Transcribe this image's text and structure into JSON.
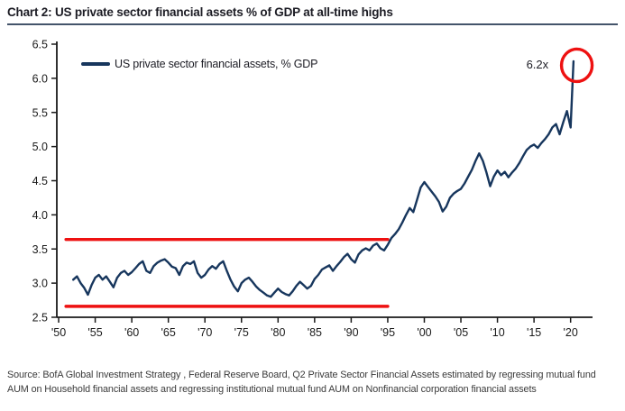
{
  "title": "Chart 2: US private sector financial assets % of GDP at all-time highs",
  "colors": {
    "series": "#17365d",
    "highlight_red": "#ee1111",
    "title_rule": "#44546a",
    "axis": "#1a1a1a",
    "source_text": "#3a3a3a"
  },
  "legend": {
    "label": "US private sector financial assets, % GDP"
  },
  "annotation": {
    "label": "6.2x"
  },
  "source": {
    "line1": "Source:  BofA Global Investment Strategy , Federal Reserve Board, Q2 Private Sector Financial Assets estimated by regressing mutual fund",
    "line2": "AUM on Household financial assets and regressing institutional mutual fund AUM on Nonfinancial corporation financial assets"
  },
  "chart_data": {
    "type": "line",
    "title": "Chart 2: US private sector financial assets % of GDP at all-time highs",
    "xlabel": "",
    "ylabel": "",
    "grid": false,
    "legend_position": "top-left",
    "ylim": [
      2.5,
      6.5
    ],
    "xlim": [
      1949.75,
      2023
    ],
    "yticks": {
      "values": [
        2.5,
        3.0,
        3.5,
        4.0,
        4.5,
        5.0,
        5.5,
        6.0,
        6.5
      ],
      "labels": [
        "2.5",
        "3.0",
        "3.5",
        "4.0",
        "4.5",
        "5.0",
        "5.5",
        "6.0",
        "6.5"
      ]
    },
    "xticks": {
      "values": [
        1950,
        1955,
        1960,
        1965,
        1970,
        1975,
        1980,
        1985,
        1990,
        1995,
        2000,
        2005,
        2010,
        2015,
        2020
      ],
      "labels": [
        "'50",
        "'55",
        "'60",
        "'65",
        "'70",
        "'75",
        "'80",
        "'85",
        "'90",
        "'95",
        "'00",
        "'05",
        "'10",
        "'15",
        "'20"
      ]
    },
    "series": [
      {
        "name": "US private sector financial assets, % GDP",
        "color": "#17365d",
        "x": [
          1952.0,
          1952.5,
          1953.0,
          1953.5,
          1954.0,
          1954.5,
          1955.0,
          1955.5,
          1956.0,
          1956.5,
          1957.0,
          1957.5,
          1958.0,
          1958.5,
          1959.0,
          1959.5,
          1960.0,
          1960.5,
          1961.0,
          1961.5,
          1962.0,
          1962.5,
          1963.0,
          1963.5,
          1964.0,
          1964.5,
          1965.0,
          1965.5,
          1966.0,
          1966.5,
          1967.0,
          1967.5,
          1968.0,
          1968.5,
          1969.0,
          1969.5,
          1970.0,
          1970.5,
          1971.0,
          1971.5,
          1972.0,
          1972.5,
          1973.0,
          1973.5,
          1974.0,
          1974.5,
          1975.0,
          1975.5,
          1976.0,
          1976.5,
          1977.0,
          1977.5,
          1978.0,
          1978.5,
          1979.0,
          1979.5,
          1980.0,
          1980.5,
          1981.0,
          1981.5,
          1982.0,
          1982.5,
          1983.0,
          1983.5,
          1984.0,
          1984.5,
          1985.0,
          1985.5,
          1986.0,
          1986.5,
          1987.0,
          1987.5,
          1988.0,
          1988.5,
          1989.0,
          1989.5,
          1990.0,
          1990.5,
          1991.0,
          1991.5,
          1992.0,
          1992.5,
          1993.0,
          1993.5,
          1994.0,
          1994.5,
          1995.0,
          1995.5,
          1996.0,
          1996.5,
          1997.0,
          1997.5,
          1998.0,
          1998.5,
          1999.0,
          1999.5,
          2000.0,
          2000.5,
          2001.0,
          2001.5,
          2002.0,
          2002.5,
          2003.0,
          2003.5,
          2004.0,
          2004.5,
          2005.0,
          2005.5,
          2006.0,
          2006.5,
          2007.0,
          2007.5,
          2008.0,
          2008.5,
          2009.0,
          2009.5,
          2010.0,
          2010.5,
          2011.0,
          2011.5,
          2012.0,
          2012.5,
          2013.0,
          2013.5,
          2014.0,
          2014.5,
          2015.0,
          2015.5,
          2016.0,
          2016.5,
          2017.0,
          2017.5,
          2018.0,
          2018.5,
          2019.0,
          2019.5,
          2020.0,
          2020.4
        ],
        "y": [
          3.05,
          3.1,
          3.0,
          2.93,
          2.83,
          2.97,
          3.08,
          3.12,
          3.05,
          3.1,
          3.02,
          2.94,
          3.08,
          3.15,
          3.18,
          3.12,
          3.16,
          3.22,
          3.28,
          3.32,
          3.18,
          3.15,
          3.25,
          3.3,
          3.33,
          3.35,
          3.3,
          3.24,
          3.22,
          3.12,
          3.25,
          3.3,
          3.28,
          3.32,
          3.15,
          3.08,
          3.12,
          3.2,
          3.25,
          3.21,
          3.28,
          3.32,
          3.18,
          3.05,
          2.95,
          2.88,
          3.0,
          3.05,
          3.08,
          3.02,
          2.95,
          2.9,
          2.86,
          2.82,
          2.8,
          2.86,
          2.92,
          2.87,
          2.84,
          2.82,
          2.88,
          2.96,
          3.02,
          2.97,
          2.92,
          2.96,
          3.06,
          3.12,
          3.2,
          3.23,
          3.26,
          3.18,
          3.25,
          3.31,
          3.38,
          3.43,
          3.35,
          3.3,
          3.42,
          3.48,
          3.51,
          3.48,
          3.55,
          3.58,
          3.51,
          3.48,
          3.56,
          3.66,
          3.72,
          3.79,
          3.89,
          4.0,
          4.1,
          4.04,
          4.22,
          4.4,
          4.48,
          4.41,
          4.34,
          4.27,
          4.19,
          4.05,
          4.12,
          4.25,
          4.31,
          4.35,
          4.38,
          4.46,
          4.56,
          4.66,
          4.79,
          4.9,
          4.79,
          4.62,
          4.42,
          4.56,
          4.65,
          4.58,
          4.63,
          4.55,
          4.62,
          4.68,
          4.76,
          4.86,
          4.95,
          5.0,
          5.03,
          4.98,
          5.05,
          5.11,
          5.18,
          5.28,
          5.33,
          5.18,
          5.36,
          5.52,
          5.28,
          6.25
        ]
      }
    ],
    "reference_lines": [
      {
        "name": "upper-range-line",
        "value": 3.64,
        "x_start": 1951,
        "x_end": 1995,
        "color": "#ee1111"
      },
      {
        "name": "lower-range-line",
        "value": 2.66,
        "x_start": 1951,
        "x_end": 1995,
        "color": "#ee1111"
      }
    ],
    "annotations": [
      {
        "type": "text",
        "text": "6.2x",
        "year": 2020.85,
        "value": 6.19
      },
      {
        "type": "ellipse",
        "year": 2020.85,
        "value": 6.19,
        "color": "#ee1111"
      }
    ]
  }
}
